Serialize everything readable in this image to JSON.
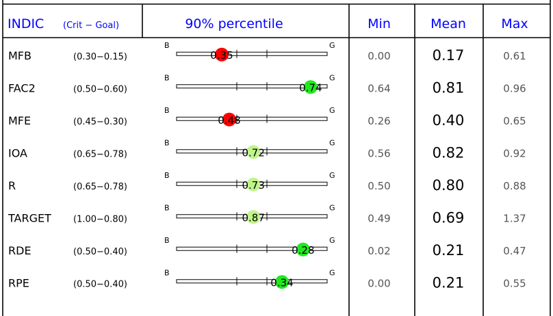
{
  "chart_data": {
    "type": "table",
    "header": {
      "indic": "INDIC",
      "indic_sub": "(Crit − Goal)",
      "percentile": "90% percentile",
      "min": "Min",
      "mean": "Mean",
      "max": "Max"
    },
    "bar_end_labels": {
      "bad": "B",
      "good": "G"
    },
    "colors": {
      "header_text": "#0000ff",
      "marker_bad": "#ff0000",
      "marker_ok": "#bff58a",
      "marker_good": "#22e822"
    },
    "rows": [
      {
        "indic": "MFB",
        "crit": "(0.30−0.15)",
        "percentile": "0.35",
        "position": 0.3,
        "marker": "bad",
        "min": "0.00",
        "mean": "0.17",
        "max": "0.61"
      },
      {
        "indic": "FAC2",
        "crit": "(0.50−0.60)",
        "percentile": "0.74",
        "position": 0.89,
        "marker": "good",
        "min": "0.64",
        "mean": "0.81",
        "max": "0.96"
      },
      {
        "indic": "MFE",
        "crit": "(0.45−0.30)",
        "percentile": "0.48",
        "position": 0.35,
        "marker": "bad",
        "min": "0.26",
        "mean": "0.40",
        "max": "0.65"
      },
      {
        "indic": "IOA",
        "crit": "(0.65−0.78)",
        "percentile": "0.72",
        "position": 0.51,
        "marker": "ok",
        "min": "0.56",
        "mean": "0.82",
        "max": "0.92"
      },
      {
        "indic": "R",
        "crit": "(0.65−0.78)",
        "percentile": "0.73",
        "position": 0.51,
        "marker": "ok",
        "min": "0.50",
        "mean": "0.80",
        "max": "0.88"
      },
      {
        "indic": "TARGET",
        "crit": "(1.00−0.80)",
        "percentile": "0.87",
        "position": 0.51,
        "marker": "ok",
        "min": "0.49",
        "mean": "0.69",
        "max": "1.37"
      },
      {
        "indic": "RDE",
        "crit": "(0.50−0.40)",
        "percentile": "0.28",
        "position": 0.84,
        "marker": "good",
        "min": "0.02",
        "mean": "0.21",
        "max": "0.47"
      },
      {
        "indic": "RPE",
        "crit": "(0.50−0.40)",
        "percentile": "0.34",
        "position": 0.7,
        "marker": "good",
        "min": "0.00",
        "mean": "0.21",
        "max": "0.55"
      }
    ]
  }
}
